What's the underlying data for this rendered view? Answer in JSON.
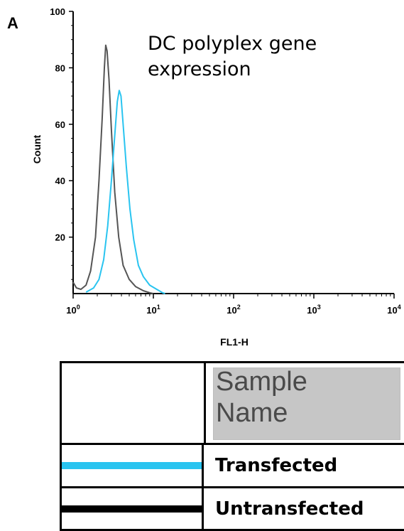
{
  "panel_label": "A",
  "chart_data": {
    "type": "line",
    "title": "DC polyplex gene expression",
    "title_lines": [
      "DC polyplex gene",
      "expression"
    ],
    "xlabel": "FL1-H",
    "ylabel": "Count",
    "x_scale": "log",
    "xlim": [
      1,
      10000
    ],
    "ylim": [
      0,
      100
    ],
    "y_ticks": [
      20,
      40,
      60,
      80,
      100
    ],
    "x_ticks": [
      {
        "value": 1,
        "base": "10",
        "exp": "0"
      },
      {
        "value": 10,
        "base": "10",
        "exp": "1"
      },
      {
        "value": 100,
        "base": "10",
        "exp": "2"
      },
      {
        "value": 1000,
        "base": "10",
        "exp": "3"
      },
      {
        "value": 10000,
        "base": "10",
        "exp": "4"
      }
    ],
    "grid": false,
    "series": [
      {
        "name": "Untransfected",
        "color": "#555555",
        "points": [
          [
            1.0,
            4
          ],
          [
            1.1,
            2
          ],
          [
            1.25,
            1.5
          ],
          [
            1.45,
            3
          ],
          [
            1.65,
            8
          ],
          [
            1.9,
            20
          ],
          [
            2.1,
            40
          ],
          [
            2.3,
            62
          ],
          [
            2.45,
            80
          ],
          [
            2.55,
            88
          ],
          [
            2.65,
            86
          ],
          [
            2.8,
            76
          ],
          [
            3.0,
            58
          ],
          [
            3.3,
            36
          ],
          [
            3.7,
            20
          ],
          [
            4.2,
            10
          ],
          [
            5.0,
            5
          ],
          [
            6.0,
            2.5
          ],
          [
            7.5,
            1
          ],
          [
            9.0,
            0.3
          ],
          [
            10.0,
            0
          ]
        ]
      },
      {
        "name": "Transfected",
        "color": "#29c4f0",
        "points": [
          [
            1.45,
            0.5
          ],
          [
            1.8,
            2
          ],
          [
            2.1,
            5
          ],
          [
            2.4,
            12
          ],
          [
            2.7,
            24
          ],
          [
            3.0,
            40
          ],
          [
            3.3,
            56
          ],
          [
            3.55,
            68
          ],
          [
            3.75,
            72
          ],
          [
            3.95,
            70
          ],
          [
            4.2,
            60
          ],
          [
            4.6,
            45
          ],
          [
            5.1,
            30
          ],
          [
            5.7,
            19
          ],
          [
            6.5,
            10
          ],
          [
            7.5,
            6
          ],
          [
            9.0,
            3
          ],
          [
            11.0,
            1.5
          ],
          [
            13.0,
            0.3
          ],
          [
            14.0,
            0
          ]
        ]
      }
    ]
  },
  "legend": {
    "header": "Sample Name",
    "rows": [
      {
        "name": "Transfected",
        "color": "#29c4f0"
      },
      {
        "name": "Untransfected",
        "color": "#000000"
      }
    ]
  }
}
